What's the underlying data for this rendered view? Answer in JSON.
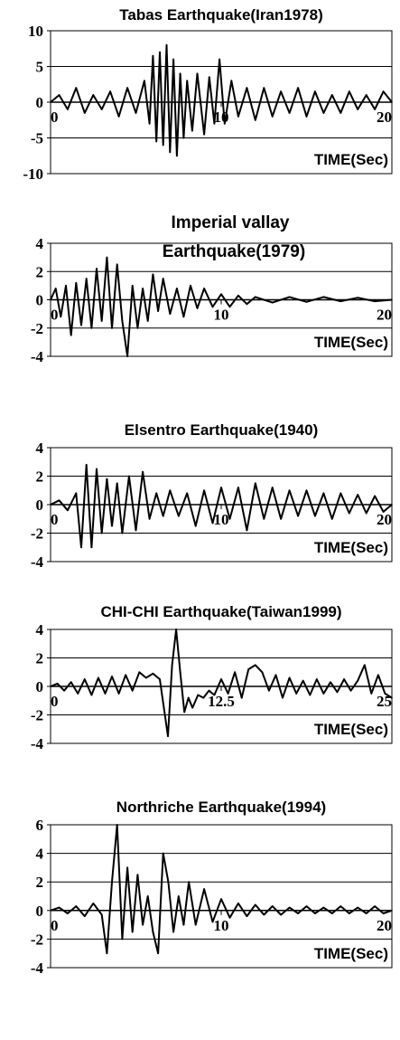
{
  "chart_data": [
    {
      "type": "line",
      "title": "Tabas Earthquake(Iran1978)",
      "title2": "",
      "xlabel": "TIME(Sec)",
      "ylabel": "",
      "xlim": [
        0,
        20
      ],
      "ylim": [
        -10,
        10
      ],
      "yticks": [
        "10",
        "5",
        "0",
        "-5",
        "-10"
      ],
      "xticks": [
        "0",
        "10",
        "20"
      ],
      "grid": true,
      "series": [
        {
          "x": [
            0,
            0.5,
            1,
            1.5,
            2,
            2.5,
            3,
            3.5,
            4,
            4.5,
            5,
            5.5,
            5.8,
            6,
            6.2,
            6.4,
            6.6,
            6.8,
            7,
            7.2,
            7.4,
            7.6,
            7.8,
            8,
            8.3,
            8.6,
            9,
            9.3,
            9.6,
            9.9,
            10.2,
            10.6,
            11,
            11.5,
            12,
            12.5,
            13,
            13.5,
            14,
            14.5,
            15,
            15.5,
            16,
            16.5,
            17,
            17.5,
            18,
            18.5,
            19,
            19.5,
            20
          ],
          "y": [
            0,
            1,
            -1,
            2,
            -1.5,
            1,
            -1,
            1.5,
            -2,
            2,
            -1.5,
            3,
            -3,
            6.5,
            -5.5,
            7,
            -6,
            8,
            -7,
            6,
            -7.5,
            4,
            -5,
            3,
            -4,
            4,
            -4.5,
            3.5,
            -3,
            6,
            -3,
            3,
            -2,
            2,
            -2.5,
            2,
            -2,
            1.5,
            -1.5,
            2,
            -2,
            1.5,
            -1.5,
            1,
            -1.5,
            1.5,
            -1,
            1,
            -1,
            1.5,
            0
          ]
        }
      ]
    },
    {
      "type": "line",
      "title": "Imperial vallay",
      "title2": "Earthquake(1979)",
      "xlabel": "TIME(Sec)",
      "ylabel": "",
      "xlim": [
        0,
        20
      ],
      "ylim": [
        -4,
        4
      ],
      "yticks": [
        "4",
        "2",
        "0",
        "-2",
        "-4"
      ],
      "xticks": [
        "0",
        "10",
        "20"
      ],
      "grid": true,
      "series": [
        {
          "x": [
            0,
            0.3,
            0.6,
            0.9,
            1.2,
            1.5,
            1.8,
            2.1,
            2.4,
            2.7,
            3,
            3.3,
            3.6,
            3.9,
            4.2,
            4.5,
            4.8,
            5.1,
            5.4,
            5.7,
            6,
            6.3,
            6.6,
            7,
            7.4,
            7.8,
            8.2,
            8.6,
            9,
            9.5,
            10,
            10.5,
            11,
            11.5,
            12,
            13,
            14,
            15,
            16,
            17,
            18,
            19,
            20
          ],
          "y": [
            0,
            0.8,
            -1.2,
            1,
            -2.5,
            1.2,
            -1.8,
            1.5,
            -2,
            2.2,
            -1.5,
            3,
            -2,
            2.5,
            -1.5,
            -4,
            1,
            -2,
            0.8,
            -1.5,
            1.8,
            -0.8,
            1.5,
            -1,
            0.8,
            -1.2,
            1,
            -0.6,
            0.8,
            -0.5,
            0.4,
            -0.5,
            0.3,
            -0.3,
            0.2,
            -0.2,
            0.2,
            -0.15,
            0.2,
            -0.1,
            0.15,
            -0.1,
            0
          ]
        }
      ]
    },
    {
      "type": "line",
      "title": "Elsentro Earthquake(1940)",
      "title2": "",
      "xlabel": "TIME(Sec)",
      "ylabel": "",
      "xlim": [
        0,
        20
      ],
      "ylim": [
        -4,
        4
      ],
      "yticks": [
        "4",
        "2",
        "0",
        "-2",
        "-4"
      ],
      "xticks": [
        "0",
        "10",
        "20"
      ],
      "grid": true,
      "series": [
        {
          "x": [
            0,
            0.5,
            1,
            1.5,
            1.8,
            2.1,
            2.4,
            2.7,
            3,
            3.3,
            3.6,
            3.9,
            4.2,
            4.6,
            5,
            5.4,
            5.8,
            6.2,
            6.6,
            7,
            7.5,
            8,
            8.5,
            9,
            9.5,
            10,
            10.5,
            11,
            11.5,
            12,
            12.5,
            13,
            13.5,
            14,
            14.5,
            15,
            15.5,
            16,
            16.5,
            17,
            17.5,
            18,
            18.5,
            19,
            19.5,
            20
          ],
          "y": [
            0,
            0.3,
            -0.4,
            0.8,
            -3,
            2.8,
            -3,
            2.5,
            -2,
            1.8,
            -1.5,
            1.5,
            -2,
            2,
            -1.8,
            2.3,
            -1,
            0.8,
            -0.8,
            1,
            -0.8,
            0.8,
            -1.5,
            1,
            -1.3,
            1.2,
            -1,
            1.2,
            -1.8,
            1.5,
            -1,
            1.2,
            -1,
            1,
            -0.8,
            1,
            -0.8,
            0.8,
            -1,
            0.8,
            -0.6,
            0.7,
            -0.6,
            0.6,
            -0.5,
            0
          ]
        }
      ]
    },
    {
      "type": "line",
      "title": "CHI-CHI Earthquake(Taiwan1999)",
      "title2": "",
      "xlabel": "TIME(Sec)",
      "ylabel": "",
      "xlim": [
        0,
        25
      ],
      "ylim": [
        -4,
        4
      ],
      "yticks": [
        "4",
        "2",
        "0",
        "-2",
        "-4"
      ],
      "xticks": [
        "0",
        "12.5",
        "25"
      ],
      "grid": true,
      "series": [
        {
          "x": [
            0,
            0.5,
            1,
            1.5,
            2,
            2.5,
            3,
            3.5,
            4,
            4.5,
            5,
            5.5,
            6,
            6.5,
            7,
            7.5,
            8,
            8.3,
            8.6,
            8.9,
            9.2,
            9.5,
            9.8,
            10.1,
            10.4,
            10.8,
            11.2,
            11.6,
            12,
            12.5,
            13,
            13.5,
            14,
            14.5,
            15,
            15.5,
            16,
            16.5,
            17,
            17.5,
            18,
            18.5,
            19,
            19.5,
            20,
            20.5,
            21,
            21.5,
            22,
            22.5,
            23,
            23.5,
            24,
            24.5,
            25
          ],
          "y": [
            0,
            0.2,
            -0.3,
            0.3,
            -0.5,
            0.5,
            -0.6,
            0.6,
            -0.5,
            0.7,
            -0.5,
            0.8,
            -0.3,
            1,
            0.6,
            0.9,
            0.5,
            -1.5,
            -3.5,
            1.5,
            4,
            1,
            -1.8,
            -0.8,
            -1.5,
            -0.6,
            -0.8,
            -0.3,
            -0.6,
            0.5,
            -0.5,
            1,
            -0.8,
            1.2,
            1.5,
            1,
            -0.3,
            0.8,
            -0.8,
            0.6,
            -0.5,
            0.4,
            -0.6,
            0.5,
            -0.5,
            0.3,
            -0.4,
            0.5,
            -0.3,
            0.4,
            1.5,
            -0.5,
            0.8,
            -0.5,
            -0.8
          ]
        }
      ]
    },
    {
      "type": "line",
      "title": "Northriche Earthquake(1994)",
      "title2": "",
      "xlabel": "TIME(Sec)",
      "ylabel": "",
      "xlim": [
        0,
        20
      ],
      "ylim": [
        -4,
        6
      ],
      "yticks": [
        "6",
        "4",
        "2",
        "0",
        "-2",
        "-4"
      ],
      "xticks": [
        "0",
        "10",
        "20"
      ],
      "grid": true,
      "series": [
        {
          "x": [
            0,
            0.5,
            1,
            1.5,
            2,
            2.5,
            3,
            3.3,
            3.6,
            3.9,
            4.2,
            4.5,
            4.8,
            5.1,
            5.4,
            5.7,
            6,
            6.3,
            6.6,
            6.9,
            7.2,
            7.5,
            7.8,
            8.1,
            8.5,
            9,
            9.5,
            10,
            10.5,
            11,
            11.5,
            12,
            12.5,
            13,
            13.5,
            14,
            14.5,
            15,
            15.5,
            16,
            16.5,
            17,
            17.5,
            18,
            18.5,
            19,
            19.5,
            20
          ],
          "y": [
            0,
            0.2,
            -0.2,
            0.3,
            -0.4,
            0.5,
            -0.3,
            -3,
            2,
            6,
            -2,
            3,
            -1.5,
            2.5,
            -1,
            1,
            -1.5,
            -3,
            4,
            2,
            -1.5,
            1,
            -1,
            2,
            -1,
            1.5,
            -0.8,
            0.8,
            -0.5,
            0.5,
            -0.4,
            0.4,
            -0.3,
            0.3,
            -0.3,
            0.2,
            -0.2,
            0.3,
            -0.2,
            0.2,
            -0.2,
            0.3,
            -0.2,
            0.2,
            -0.2,
            0.3,
            -0.2,
            0
          ]
        }
      ]
    }
  ]
}
